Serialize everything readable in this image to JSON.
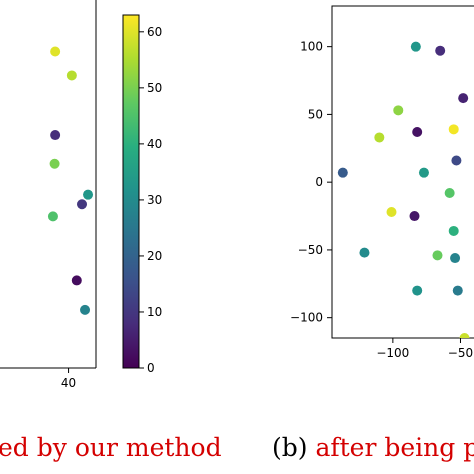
{
  "chart_data": [
    {
      "type": "scatter",
      "title": "",
      "xlabel": "",
      "ylabel": "",
      "xticks": [
        40
      ],
      "colormap": "viridis",
      "colorbar": {
        "min": 0,
        "max": 63,
        "ticks": [
          0,
          10,
          20,
          30,
          40,
          50,
          60
        ]
      },
      "xlim": [
        15,
        50
      ],
      "ylim": [
        0,
        100
      ],
      "points": [
        {
          "x": 35.1,
          "y": 86.0,
          "c": 60
        },
        {
          "x": 41.2,
          "y": 79.5,
          "c": 56
        },
        {
          "x": 35.1,
          "y": 63.3,
          "c": 8
        },
        {
          "x": 34.9,
          "y": 55.5,
          "c": 50
        },
        {
          "x": 47.1,
          "y": 47.1,
          "c": 33
        },
        {
          "x": 44.9,
          "y": 44.5,
          "c": 10
        },
        {
          "x": 34.3,
          "y": 41.2,
          "c": 45
        },
        {
          "x": 43.0,
          "y": 23.8,
          "c": 2
        },
        {
          "x": 46.0,
          "y": 15.8,
          "c": 28
        }
      ]
    },
    {
      "type": "scatter",
      "title": "",
      "xlabel": "",
      "ylabel": "",
      "xticks": [
        -100,
        -50
      ],
      "yticks": [
        -100,
        -50,
        0,
        50,
        100
      ],
      "xlim": [
        -145,
        -40
      ],
      "ylim": [
        -115,
        130
      ],
      "colormap": "viridis",
      "points": [
        {
          "x": -83,
          "y": 100,
          "c": 33
        },
        {
          "x": -65,
          "y": 97,
          "c": 8
        },
        {
          "x": -48,
          "y": 62,
          "c": 6
        },
        {
          "x": -96,
          "y": 53,
          "c": 52
        },
        {
          "x": -55,
          "y": 39,
          "c": 62
        },
        {
          "x": -110,
          "y": 33,
          "c": 56
        },
        {
          "x": -82,
          "y": 37,
          "c": 3
        },
        {
          "x": -53,
          "y": 16,
          "c": 14
        },
        {
          "x": -137,
          "y": 7,
          "c": 18
        },
        {
          "x": -77,
          "y": 7,
          "c": 34
        },
        {
          "x": -58,
          "y": -8,
          "c": 46
        },
        {
          "x": -101,
          "y": -22,
          "c": 60
        },
        {
          "x": -84,
          "y": -25,
          "c": 4
        },
        {
          "x": -55,
          "y": -36,
          "c": 40
        },
        {
          "x": -121,
          "y": -52,
          "c": 30
        },
        {
          "x": -67,
          "y": -54,
          "c": 48
        },
        {
          "x": -54,
          "y": -56,
          "c": 28
        },
        {
          "x": -82,
          "y": -80,
          "c": 32
        },
        {
          "x": -52,
          "y": -80,
          "c": 26
        },
        {
          "x": -47,
          "y": -115,
          "c": 58
        }
      ]
    }
  ],
  "captions": [
    {
      "label": "",
      "text": "ed by our method"
    },
    {
      "label": "(b)",
      "text": "after being p"
    }
  ]
}
